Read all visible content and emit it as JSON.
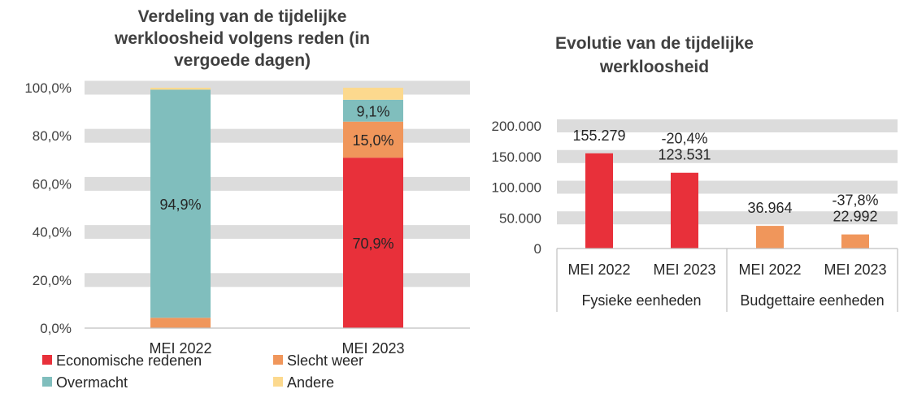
{
  "chart_data": [
    {
      "type": "bar",
      "stacked": true,
      "title_lines": [
        "Verdeling van de tijdelijke",
        "werkloosheid volgens reden (in",
        "vergoede dagen)"
      ],
      "categories": [
        "MEI 2022",
        "MEI 2023"
      ],
      "ylim": [
        0,
        100
      ],
      "yticks": [
        "0,0%",
        "20,0%",
        "40,0%",
        "60,0%",
        "80,0%",
        "100,0%"
      ],
      "grid": true,
      "legend_position": "bottom",
      "series": [
        {
          "name": "Economische redenen",
          "color": "#E8303A",
          "values": [
            0.0,
            70.9
          ],
          "labels": [
            "",
            "70,9%"
          ]
        },
        {
          "name": "Slecht weer",
          "color": "#F0965B",
          "values": [
            4.3,
            15.0
          ],
          "labels": [
            "",
            "15,0%"
          ]
        },
        {
          "name": "Overmacht",
          "color": "#80BEBD",
          "values": [
            94.9,
            9.1
          ],
          "labels": [
            "94,9%",
            "9,1%"
          ]
        },
        {
          "name": "Andere",
          "color": "#FCD98E",
          "values": [
            0.8,
            5.0
          ],
          "labels": [
            "",
            ""
          ]
        }
      ]
    },
    {
      "type": "bar",
      "title_lines": [
        "Evolutie van de tijdelijke",
        "werkloosheid"
      ],
      "categories": [
        "MEI 2022",
        "MEI 2023",
        "MEI 2022",
        "MEI 2023"
      ],
      "groups": [
        "Fysieke eenheden",
        "Budgettaire eenheden"
      ],
      "ylim": [
        0,
        200000
      ],
      "yticks": [
        "0",
        "50.000",
        "100.000",
        "150.000",
        "200.000"
      ],
      "grid": true,
      "values": [
        155279,
        123531,
        36964,
        22992
      ],
      "value_labels": [
        "155.279",
        "123.531",
        "36.964",
        "22.992"
      ],
      "change_labels": [
        "",
        "-20,4%",
        "",
        "-37,8%"
      ],
      "colors": [
        "#E8303A",
        "#E8303A",
        "#F0965B",
        "#F0965B"
      ]
    }
  ]
}
